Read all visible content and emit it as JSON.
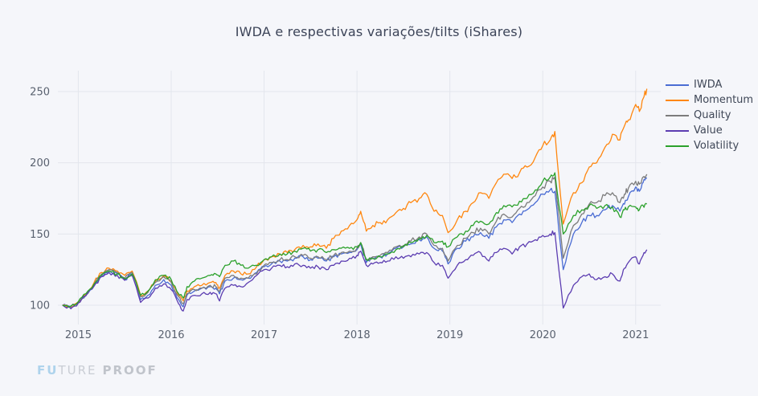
{
  "title": "IWDA e respectivas variações/tilts (iShares)",
  "logo": {
    "prefix": "FU",
    "middle": "TURE",
    "suffix": "PROOF"
  },
  "colors": {
    "background": "#f5f6fa",
    "gridline": "#e3e6ed",
    "title_text": "#3c4458",
    "tick_text": "#59616f",
    "logo_blue": "#aed3ec",
    "logo_gray": "#c9cdd4"
  },
  "chart_data": {
    "type": "line",
    "title": "IWDA e respectivas variações/tilts (iShares)",
    "grid": true,
    "legend_position": "right-top",
    "x_axis": {
      "ticks": [
        2015,
        2016,
        2017,
        2018,
        2019,
        2020,
        2021
      ],
      "range": [
        2014.78,
        2021.27
      ]
    },
    "y_axis": {
      "ticks": [
        100,
        150,
        200,
        250
      ],
      "range": [
        87,
        265
      ]
    },
    "x": [
      2014.83,
      2014.92,
      2015.0,
      2015.08,
      2015.17,
      2015.25,
      2015.33,
      2015.42,
      2015.5,
      2015.58,
      2015.67,
      2015.75,
      2015.83,
      2015.92,
      2016.0,
      2016.08,
      2016.13,
      2016.17,
      2016.25,
      2016.33,
      2016.42,
      2016.48,
      2016.52,
      2016.58,
      2016.67,
      2016.75,
      2016.83,
      2016.92,
      2017.0,
      2017.08,
      2017.17,
      2017.25,
      2017.33,
      2017.42,
      2017.5,
      2017.58,
      2017.67,
      2017.75,
      2017.83,
      2017.92,
      2018.0,
      2018.04,
      2018.1,
      2018.17,
      2018.25,
      2018.33,
      2018.42,
      2018.5,
      2018.58,
      2018.67,
      2018.75,
      2018.83,
      2018.92,
      2018.98,
      2019.08,
      2019.17,
      2019.25,
      2019.33,
      2019.42,
      2019.5,
      2019.58,
      2019.67,
      2019.75,
      2019.83,
      2019.92,
      2020.0,
      2020.08,
      2020.13,
      2020.22,
      2020.33,
      2020.42,
      2020.5,
      2020.58,
      2020.67,
      2020.75,
      2020.83,
      2020.88,
      2020.92,
      2021.0,
      2021.04,
      2021.08,
      2021.12
    ],
    "series": [
      {
        "name": "IWDA",
        "color": "#4a6cd3",
        "values": [
          100,
          98.5,
          102,
          107,
          114,
          121,
          124,
          122,
          118,
          122,
          104,
          107,
          114,
          118,
          114,
          104,
          99,
          107,
          110,
          112,
          113,
          112,
          108,
          117,
          119,
          118,
          119,
          123,
          127,
          129,
          131,
          131,
          133,
          134,
          132,
          133,
          131,
          134,
          136,
          137,
          139,
          143,
          130,
          133,
          134,
          136,
          140,
          141,
          143,
          146,
          148,
          140,
          138,
          129,
          140,
          145,
          148,
          151,
          147,
          155,
          160,
          158,
          164,
          167,
          172,
          178,
          181,
          180,
          125,
          150,
          158,
          163,
          163,
          167,
          170,
          166,
          171,
          176,
          183,
          180,
          186,
          189
        ]
      },
      {
        "name": "Momentum",
        "color": "#ff870f",
        "values": [
          100,
          99,
          102.5,
          108,
          116,
          123,
          126,
          124,
          121,
          124,
          107,
          110,
          117,
          121,
          117,
          107,
          103,
          110,
          113,
          114,
          116,
          116,
          112,
          121,
          124,
          122,
          122,
          127,
          132,
          134,
          136,
          137,
          139,
          142,
          141,
          143,
          140,
          147,
          152,
          156,
          160,
          166,
          152,
          156,
          158,
          160,
          165,
          168,
          172,
          175,
          178,
          166,
          163,
          151,
          160,
          166,
          172,
          179,
          175,
          186,
          192,
          189,
          193,
          197,
          204,
          212,
          216,
          222,
          157,
          179,
          186,
          197,
          200,
          211,
          220,
          216,
          226,
          230,
          241,
          236,
          245,
          252
        ]
      },
      {
        "name": "Quality",
        "color": "#7c7c7c",
        "values": [
          100,
          99,
          102,
          107,
          115,
          122,
          125,
          123,
          119,
          123,
          106,
          109,
          116,
          120,
          116,
          106,
          101,
          108,
          111,
          112,
          114,
          113,
          110,
          119,
          121,
          119,
          119,
          122,
          128,
          130,
          132,
          132,
          134,
          135,
          133,
          134,
          132,
          135,
          137,
          138,
          140,
          144,
          132,
          134,
          135,
          137,
          141,
          142,
          145,
          148,
          150,
          142,
          140,
          131,
          142,
          147,
          151,
          154,
          150,
          159,
          164,
          162,
          168,
          172,
          177,
          183,
          187,
          190,
          133,
          156,
          164,
          171,
          172,
          177,
          179,
          172,
          178,
          182,
          187,
          185,
          190,
          192
        ]
      },
      {
        "name": "Value",
        "color": "#5c3db1",
        "values": [
          100,
          97.5,
          101.5,
          106.5,
          113.5,
          120,
          123,
          121,
          117.5,
          121,
          102,
          105,
          112,
          115,
          111,
          101,
          96,
          104,
          107,
          108,
          109,
          108,
          103,
          112,
          114,
          113,
          116,
          121,
          125,
          126,
          128,
          127,
          129,
          128,
          126,
          127,
          125,
          128,
          131,
          133,
          135,
          138,
          128,
          129,
          130,
          131,
          134,
          133,
          134,
          136,
          137,
          130,
          128,
          119,
          128,
          132,
          135,
          137,
          131,
          137,
          140,
          136,
          141,
          143,
          146,
          149,
          150,
          151,
          98,
          114,
          120,
          122,
          118,
          120,
          122,
          117,
          126,
          130,
          134,
          129,
          135,
          139
        ]
      },
      {
        "name": "Volatility",
        "color": "#2ba12b",
        "values": [
          100,
          99.5,
          102.5,
          108,
          115,
          121,
          124,
          122,
          118.5,
          122,
          107,
          110,
          118,
          121,
          118,
          108,
          105,
          113,
          117,
          119,
          121,
          122,
          120,
          128,
          131,
          128,
          126,
          128,
          132,
          134,
          136,
          136,
          138,
          140,
          138,
          139,
          137,
          139,
          140,
          140,
          141,
          144,
          132,
          133,
          134,
          136,
          139,
          141,
          144,
          147,
          149,
          144,
          145,
          141,
          148,
          152,
          156,
          159,
          157,
          165,
          170,
          169,
          173,
          175,
          181,
          187,
          190,
          193,
          150,
          163,
          167,
          170,
          168,
          170,
          169,
          162,
          167,
          169,
          169,
          167,
          170,
          171
        ]
      }
    ]
  }
}
